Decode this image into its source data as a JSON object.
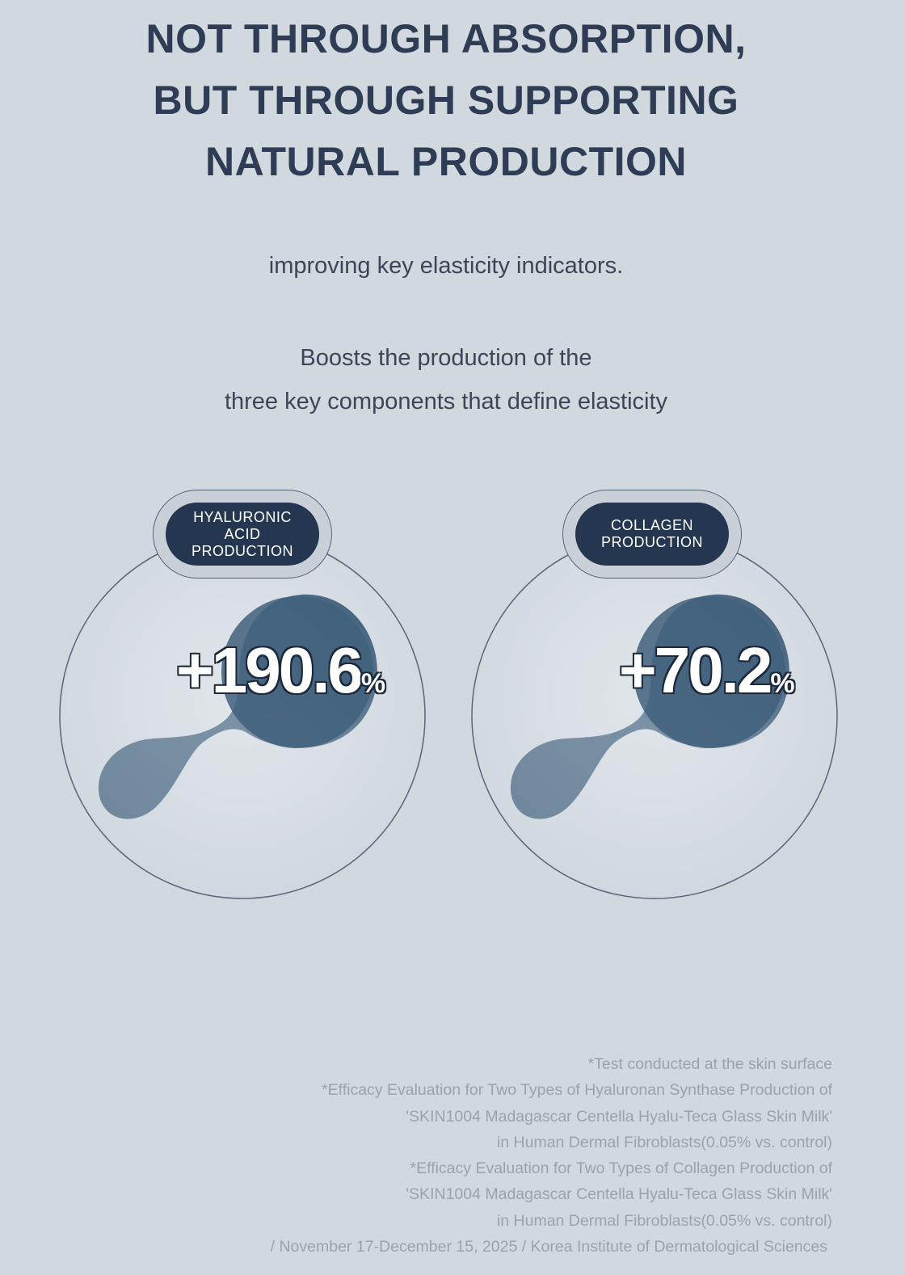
{
  "headline": {
    "line1": "NOT THROUGH ABSORPTION,",
    "line2": "BUT THROUGH SUPPORTING",
    "line3": "NATURAL PRODUCTION"
  },
  "intro": "improving key elasticity indicators.",
  "subheading": {
    "line1": "Boosts the production of the",
    "line2": "three key components that define elasticity"
  },
  "stats": [
    {
      "label_lines": [
        "HYALURONIC",
        "ACID",
        "PRODUCTION"
      ],
      "value": "+190.6",
      "unit": "%"
    },
    {
      "label_lines": [
        "COLLAGEN",
        "PRODUCTION"
      ],
      "value": "+70.2",
      "unit": "%"
    }
  ],
  "footnotes": [
    "*Test conducted at the skin surface",
    "*Efficacy Evaluation for Two Types of Hyaluronan Synthase Production of",
    "'SKIN1004 Madagascar Centella Hyalu-Teca Glass Skin Milk'",
    "in Human Dermal Fibroblasts(0.05% vs. control)",
    "*Efficacy Evaluation for Two Types of Collagen Production of",
    "'SKIN1004 Madagascar Centella Hyalu-Teca Glass Skin Milk'",
    "in Human Dermal Fibroblasts(0.05% vs. control)",
    "/ November 17-December 15, 2025 / Korea Institute of Dermatological Sciences"
  ],
  "colors": {
    "background": "#d1d9df",
    "headline": "#2e3d55",
    "pill": "#243650",
    "blob": "#4d6a84",
    "footnote": "#9aa3ad"
  }
}
